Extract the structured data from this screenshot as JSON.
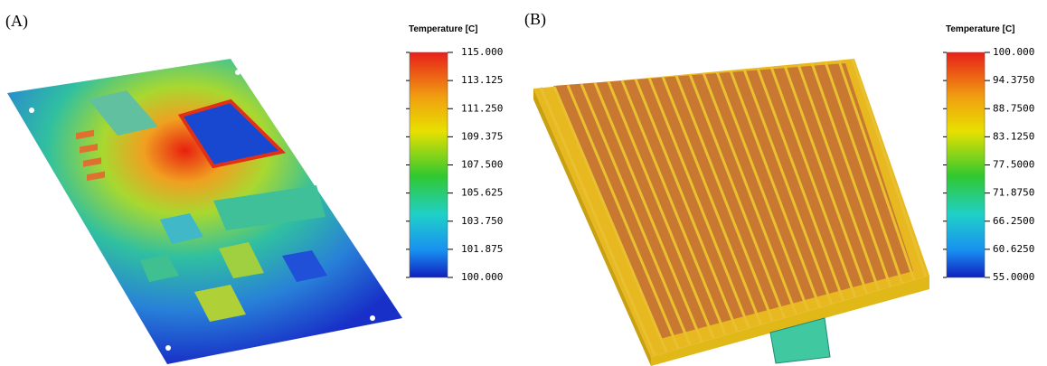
{
  "panels": [
    {
      "label": "(A)",
      "colorbar": {
        "title": "Temperature [C]",
        "ticks": [
          "115.000",
          "113.125",
          "111.250",
          "109.375",
          "107.500",
          "105.625",
          "103.750",
          "101.875",
          "100.000"
        ]
      }
    },
    {
      "label": "(B)",
      "colorbar": {
        "title": "Temperature [C]",
        "ticks": [
          "100.000",
          "94.3750",
          "88.7500",
          "83.1250",
          "77.5000",
          "71.8750",
          "66.2500",
          "60.6250",
          "55.0000"
        ]
      }
    }
  ]
}
